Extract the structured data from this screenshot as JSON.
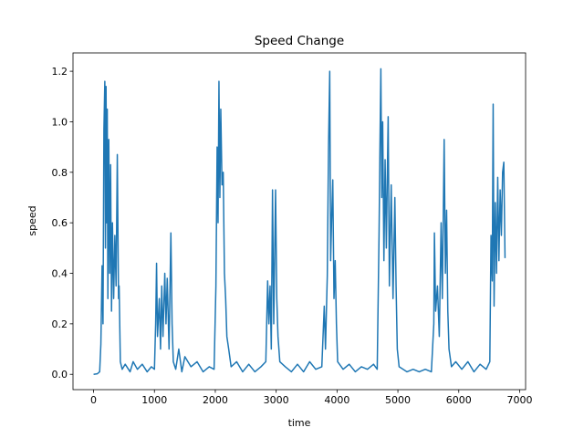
{
  "chart_data": {
    "type": "line",
    "title": "Speed Change",
    "x_label": "time",
    "y_label": "speed",
    "xlim": [
      -338,
      7098
    ],
    "ylim": [
      -0.0606,
      1.2726
    ],
    "xticks": [
      0,
      1000,
      2000,
      3000,
      4000,
      5000,
      6000,
      7000
    ],
    "yticks": [
      {
        "value": 0,
        "label": "0.0"
      },
      {
        "value": 0.2,
        "label": "0.2"
      },
      {
        "value": 0.4,
        "label": "0.4"
      },
      {
        "value": 0.6,
        "label": "0.6"
      },
      {
        "value": 0.8,
        "label": "0.8"
      },
      {
        "value": 1.0,
        "label": "1.0"
      },
      {
        "value": 1.2,
        "label": "1.2"
      }
    ],
    "grid": false,
    "series": [
      {
        "name": "speed",
        "color": "#1f77b4",
        "x": [
          0,
          60,
          100,
          120,
          140,
          155,
          170,
          185,
          195,
          205,
          215,
          225,
          235,
          250,
          265,
          280,
          295,
          310,
          330,
          350,
          370,
          390,
          410,
          420,
          440,
          470,
          520,
          600,
          650,
          720,
          800,
          880,
          950,
          1000,
          1020,
          1035,
          1050,
          1080,
          1100,
          1120,
          1140,
          1170,
          1190,
          1210,
          1240,
          1270,
          1290,
          1310,
          1350,
          1400,
          1450,
          1500,
          1600,
          1700,
          1800,
          1900,
          1980,
          2010,
          2030,
          2045,
          2060,
          2075,
          2090,
          2110,
          2130,
          2150,
          2170,
          2190,
          2220,
          2260,
          2350,
          2450,
          2550,
          2650,
          2750,
          2830,
          2860,
          2880,
          2900,
          2920,
          2940,
          2960,
          2990,
          3010,
          3030,
          3060,
          3150,
          3250,
          3350,
          3450,
          3550,
          3650,
          3750,
          3790,
          3810,
          3840,
          3860,
          3880,
          3895,
          3910,
          3930,
          3950,
          3970,
          3990,
          4010,
          4100,
          4200,
          4300,
          4400,
          4500,
          4600,
          4660,
          4690,
          4705,
          4720,
          4735,
          4750,
          4770,
          4790,
          4810,
          4840,
          4860,
          4890,
          4920,
          4950,
          4970,
          4990,
          5020,
          5150,
          5250,
          5350,
          5450,
          5550,
          5590,
          5600,
          5620,
          5650,
          5680,
          5710,
          5730,
          5760,
          5780,
          5800,
          5820,
          5840,
          5880,
          5950,
          6050,
          6150,
          6250,
          6350,
          6450,
          6510,
          6530,
          6550,
          6565,
          6580,
          6600,
          6620,
          6640,
          6660,
          6680,
          6700,
          6720,
          6740,
          6760
        ],
        "values": [
          0,
          0.002,
          0.01,
          0.12,
          0.43,
          0.2,
          0.97,
          1.16,
          0.5,
          1.14,
          0.6,
          1.05,
          0.3,
          0.93,
          0.4,
          0.83,
          0.25,
          0.6,
          0.3,
          0.55,
          0.35,
          0.87,
          0.3,
          0.35,
          0.05,
          0.02,
          0.04,
          0.01,
          0.05,
          0.02,
          0.04,
          0.01,
          0.03,
          0.02,
          0.2,
          0.44,
          0.15,
          0.3,
          0.1,
          0.35,
          0.15,
          0.4,
          0.2,
          0.38,
          0.1,
          0.56,
          0.2,
          0.05,
          0.02,
          0.1,
          0.01,
          0.07,
          0.03,
          0.05,
          0.01,
          0.03,
          0.02,
          0.35,
          0.9,
          0.6,
          1.16,
          0.7,
          1.05,
          0.75,
          0.8,
          0.4,
          0.3,
          0.15,
          0.1,
          0.03,
          0.05,
          0.01,
          0.04,
          0.01,
          0.03,
          0.05,
          0.37,
          0.2,
          0.35,
          0.1,
          0.73,
          0.2,
          0.73,
          0.3,
          0.15,
          0.05,
          0.03,
          0.01,
          0.04,
          0.01,
          0.05,
          0.02,
          0.03,
          0.27,
          0.1,
          0.39,
          0.9,
          1.2,
          0.45,
          0.6,
          0.77,
          0.3,
          0.45,
          0.2,
          0.05,
          0.02,
          0.04,
          0.01,
          0.03,
          0.02,
          0.04,
          0.02,
          0.55,
          0.9,
          1.21,
          0.7,
          1.0,
          0.45,
          0.85,
          0.5,
          1.02,
          0.35,
          0.75,
          0.3,
          0.7,
          0.35,
          0.1,
          0.03,
          0.01,
          0.02,
          0.01,
          0.02,
          0.01,
          0.2,
          0.56,
          0.25,
          0.35,
          0.15,
          0.6,
          0.3,
          0.93,
          0.4,
          0.65,
          0.25,
          0.1,
          0.03,
          0.05,
          0.02,
          0.05,
          0.01,
          0.04,
          0.02,
          0.05,
          0.55,
          0.37,
          1.07,
          0.27,
          0.68,
          0.4,
          0.78,
          0.45,
          0.73,
          0.55,
          0.8,
          0.84,
          0.46
        ]
      }
    ]
  }
}
